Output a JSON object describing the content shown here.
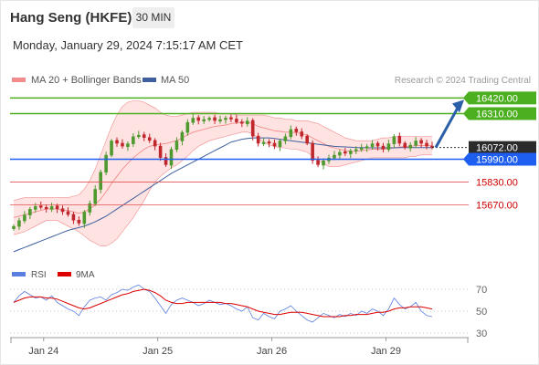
{
  "header": {
    "title": "Hang Seng (HKFE)",
    "interval": "30 MIN",
    "datetime": "Monday, January 29, 2024 7:15:17 AM CET",
    "credit": "Research © 2024 Trading Central"
  },
  "colors": {
    "bollinger": "#f28b8b",
    "bollinger_fill": "#ffe0e0",
    "ma20": "#f28b8b",
    "ma50": "#3f5f9f",
    "resistance": "#4caf1f",
    "support_blue": "#1e5ef0",
    "support_red": "#e05050",
    "label_red": "#cc0000",
    "current_price": "#2b2b2b",
    "rsi": "#5b7fe0",
    "rsi_ma": "#dd0000",
    "candle_up": "#4e9a2e",
    "candle_down": "#c0272d",
    "arrow": "#2b5fa8"
  },
  "chart_data": [
    {
      "type": "candlestick",
      "legend": [
        {
          "name": "MA 20 + Bollinger Bands",
          "color": "#f28b8b"
        },
        {
          "name": "MA 50",
          "color": "#3f5f9f"
        }
      ],
      "x_labels": [
        "Jan 24",
        "Jan 25",
        "Jan 26",
        "Jan 29"
      ],
      "x_label_index": [
        5,
        26,
        47,
        68
      ],
      "n_bars": 78,
      "ylim": [
        15320,
        16480
      ],
      "levels": [
        {
          "value": 16420.0,
          "label": "16420.00",
          "kind": "resistance"
        },
        {
          "value": 16310.0,
          "label": "16310.00",
          "kind": "resistance"
        },
        {
          "value": 16072.0,
          "label": "16072.00",
          "kind": "current"
        },
        {
          "value": 15990.0,
          "label": "15990.00",
          "kind": "support_blue"
        },
        {
          "value": 15830.0,
          "label": "15830.00",
          "kind": "support_red"
        },
        {
          "value": 15670.0,
          "label": "15670.00",
          "kind": "support_red"
        }
      ],
      "closes": [
        15520,
        15560,
        15600,
        15640,
        15660,
        15650,
        15640,
        15660,
        15640,
        15620,
        15600,
        15560,
        15540,
        15620,
        15680,
        15780,
        15900,
        16020,
        16120,
        16100,
        16080,
        16100,
        16150,
        16160,
        16140,
        16120,
        16080,
        16000,
        15950,
        16060,
        16120,
        16180,
        16250,
        16280,
        16260,
        16270,
        16280,
        16260,
        16270,
        16280,
        16270,
        16250,
        16240,
        16260,
        16150,
        16100,
        16110,
        16100,
        16080,
        16120,
        16150,
        16200,
        16180,
        16150,
        16100,
        15980,
        15950,
        15980,
        16000,
        16020,
        16040,
        16030,
        16050,
        16060,
        16070,
        16080,
        16100,
        16080,
        16060,
        16100,
        16150,
        16100,
        16070,
        16090,
        16120,
        16100,
        16080,
        16072
      ],
      "ma20": [
        15580,
        15590,
        15600,
        15610,
        15620,
        15630,
        15640,
        15640,
        15640,
        15630,
        15630,
        15620,
        15610,
        15620,
        15640,
        15670,
        15710,
        15760,
        15820,
        15870,
        15920,
        15960,
        16000,
        16030,
        16060,
        16080,
        16090,
        16095,
        16100,
        16110,
        16120,
        16140,
        16160,
        16180,
        16190,
        16200,
        16210,
        16220,
        16225,
        16230,
        16240,
        16245,
        16250,
        16250,
        16240,
        16220,
        16210,
        16200,
        16190,
        16185,
        16180,
        16180,
        16175,
        16170,
        16160,
        16140,
        16120,
        16100,
        16080,
        16070,
        16060,
        16050,
        16045,
        16045,
        16050,
        16055,
        16060,
        16060,
        16060,
        16065,
        16070,
        16075,
        16080,
        16080,
        16085,
        16085,
        16085,
        16085
      ],
      "bb_upper": [
        15700,
        15710,
        15720,
        15720,
        15720,
        15720,
        15720,
        15720,
        15720,
        15720,
        15720,
        15730,
        15740,
        15780,
        15840,
        15920,
        16020,
        16120,
        16220,
        16300,
        16360,
        16390,
        16400,
        16400,
        16390,
        16370,
        16350,
        16320,
        16300,
        16290,
        16290,
        16300,
        16310,
        16320,
        16320,
        16320,
        16320,
        16320,
        16310,
        16310,
        16310,
        16300,
        16300,
        16300,
        16300,
        16300,
        16300,
        16290,
        16280,
        16280,
        16270,
        16270,
        16260,
        16260,
        16260,
        16250,
        16240,
        16220,
        16200,
        16180,
        16160,
        16140,
        16130,
        16120,
        16120,
        16120,
        16120,
        16130,
        16140,
        16140,
        16150,
        16150,
        16150,
        16150,
        16150,
        16150,
        16150,
        16150
      ],
      "bb_lower": [
        15460,
        15470,
        15480,
        15500,
        15520,
        15540,
        15560,
        15560,
        15560,
        15540,
        15520,
        15500,
        15480,
        15450,
        15420,
        15400,
        15380,
        15380,
        15400,
        15430,
        15480,
        15530,
        15580,
        15640,
        15700,
        15770,
        15830,
        15870,
        15900,
        15930,
        15950,
        15980,
        16010,
        16050,
        16080,
        16100,
        16120,
        16130,
        16140,
        16150,
        16160,
        16170,
        16180,
        16180,
        16170,
        16130,
        16110,
        16090,
        16080,
        16070,
        16070,
        16060,
        16060,
        16050,
        16040,
        16010,
        15980,
        15960,
        15940,
        15940,
        15940,
        15950,
        15960,
        15970,
        15980,
        15990,
        16000,
        16000,
        16000,
        16000,
        16000,
        16000,
        16000,
        16010,
        16010,
        16020,
        16020,
        16020
      ],
      "ma50": [
        15340,
        15355,
        15370,
        15385,
        15400,
        15415,
        15430,
        15445,
        15460,
        15475,
        15490,
        15500,
        15510,
        15520,
        15535,
        15550,
        15570,
        15590,
        15615,
        15640,
        15665,
        15690,
        15715,
        15740,
        15765,
        15790,
        15815,
        15840,
        15865,
        15890,
        15910,
        15930,
        15950,
        15970,
        15990,
        16010,
        16030,
        16050,
        16070,
        16090,
        16110,
        16120,
        16130,
        16135,
        16140,
        16140,
        16140,
        16140,
        16135,
        16130,
        16125,
        16120,
        16115,
        16110,
        16105,
        16100,
        16095,
        16090,
        16085,
        16080,
        16078,
        16076,
        16074,
        16072,
        16071,
        16070,
        16070,
        16070,
        16070,
        16070,
        16070,
        16071,
        16071,
        16071,
        16072,
        16072,
        16072,
        16072
      ]
    },
    {
      "type": "line",
      "legend": [
        {
          "name": "RSI",
          "color": "#5b7fe0"
        },
        {
          "name": "9MA",
          "color": "#dd0000"
        }
      ],
      "ylim": [
        20,
        80
      ],
      "y_ticks": [
        70,
        50,
        30
      ],
      "rsi": [
        58,
        64,
        68,
        65,
        62,
        63,
        60,
        64,
        58,
        55,
        52,
        50,
        46,
        54,
        60,
        62,
        63,
        60,
        65,
        67,
        70,
        69,
        72,
        74,
        70,
        68,
        62,
        55,
        48,
        56,
        60,
        62,
        60,
        58,
        55,
        57,
        60,
        58,
        56,
        57,
        55,
        52,
        50,
        54,
        44,
        42,
        48,
        45,
        43,
        50,
        52,
        55,
        50,
        46,
        42,
        40,
        44,
        48,
        46,
        44,
        47,
        45,
        48,
        46,
        50,
        48,
        52,
        50,
        46,
        52,
        62,
        56,
        52,
        54,
        58,
        50,
        46,
        45
      ],
      "rsi_ma": [
        58,
        60,
        62,
        63,
        63,
        63,
        62,
        62,
        61,
        59,
        57,
        55,
        53,
        52,
        53,
        55,
        57,
        59,
        61,
        63,
        65,
        66,
        68,
        69,
        70,
        69,
        67,
        64,
        60,
        58,
        57,
        57,
        58,
        58,
        58,
        58,
        58,
        58,
        58,
        57,
        57,
        56,
        55,
        54,
        52,
        50,
        49,
        48,
        47,
        47,
        48,
        49,
        49,
        49,
        48,
        47,
        46,
        45,
        45,
        45,
        45,
        46,
        46,
        47,
        47,
        47,
        48,
        49,
        49,
        50,
        52,
        53,
        53,
        54,
        54,
        54,
        53,
        52
      ]
    }
  ]
}
